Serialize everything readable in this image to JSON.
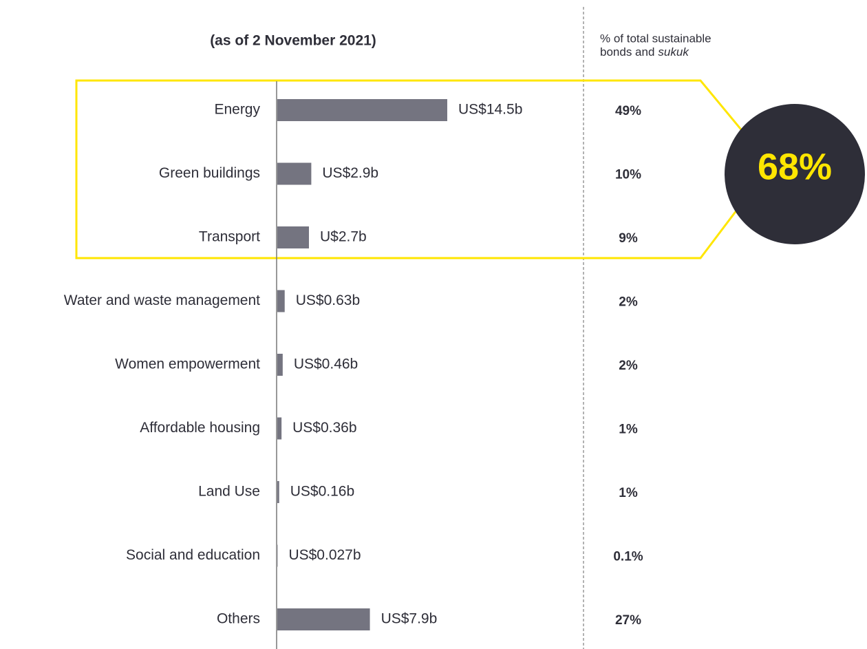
{
  "chart_data": {
    "type": "bar",
    "orientation": "horizontal",
    "title": "(as of 2 November 2021)",
    "column_header": [
      "% of total sustainable",
      "bonds and"
    ],
    "column_header_italic": "sukuk",
    "categories": [
      "Energy",
      "Green buildings",
      "Transport",
      "Water and waste management",
      "Women empowerment",
      "Affordable housing",
      "Land Use",
      "Social and education",
      "Others"
    ],
    "values": [
      14.5,
      2.9,
      2.7,
      0.63,
      0.46,
      0.36,
      0.16,
      0.027,
      7.9
    ],
    "value_labels": [
      "US$14.5b",
      "US$2.9b",
      "U$2.7b",
      "US$0.63b",
      "US$0.46b",
      "US$0.36b",
      "US$0.16b",
      "US$0.027b",
      "US$7.9b"
    ],
    "share_labels": [
      "49%",
      "10%",
      "9%",
      "2%",
      "2%",
      "1%",
      "1%",
      "0.1%",
      "27%"
    ],
    "highlight": "68%",
    "color": "#747480",
    "xlim": [
      0,
      30
    ]
  }
}
